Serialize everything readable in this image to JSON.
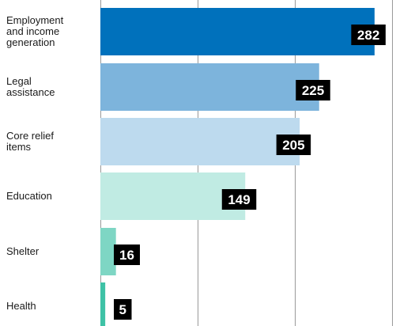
{
  "chart_data": {
    "type": "bar",
    "orientation": "horizontal",
    "categories": [
      [
        "Employment",
        "and income",
        "generation"
      ],
      [
        "Legal",
        "assistance"
      ],
      [
        "Core relief",
        "items"
      ],
      [
        "Education"
      ],
      [
        "Shelter"
      ],
      [
        "Health"
      ]
    ],
    "values": [
      282,
      225,
      205,
      149,
      16,
      5
    ],
    "value_labels": [
      "282",
      "225",
      "205",
      "149",
      "16",
      "5"
    ],
    "bar_colors": [
      "#0071bc",
      "#7db4dc",
      "#bddaee",
      "#c0ebe3",
      "#7ed6c4",
      "#3ec2a6"
    ],
    "label_box_color": "#000000",
    "gridline_color": "#9a9a9a",
    "xlim": [
      0,
      300
    ],
    "grid": true,
    "title": "",
    "xlabel": "",
    "ylabel": ""
  }
}
